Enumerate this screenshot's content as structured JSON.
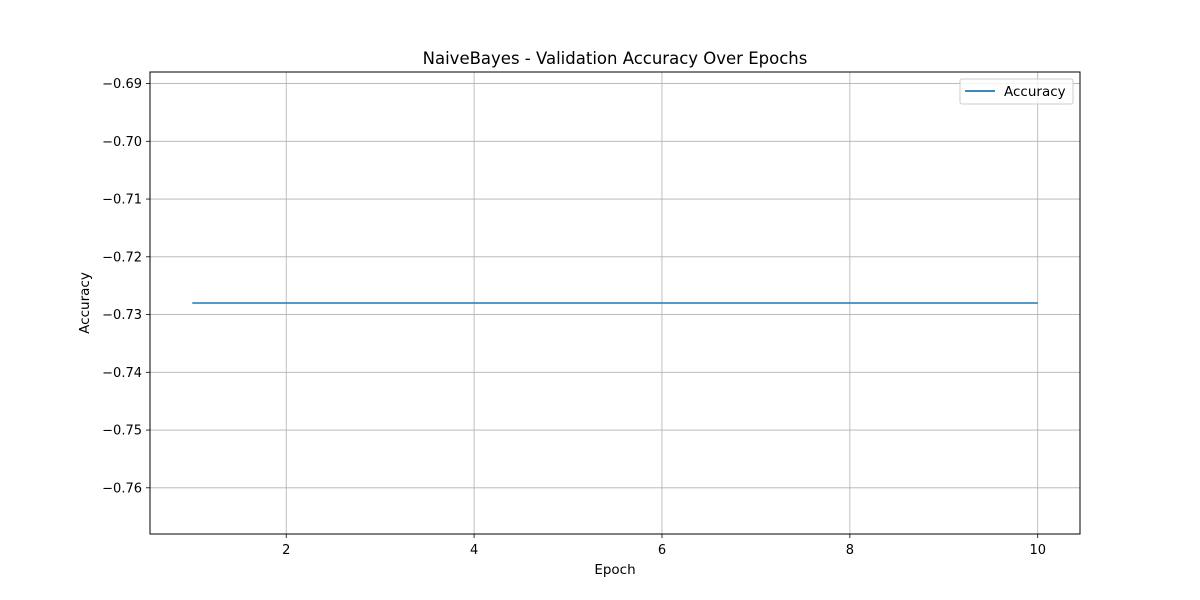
{
  "chart_data": {
    "type": "line",
    "title": "NaiveBayes - Validation Accuracy Over Epochs",
    "xlabel": "Epoch",
    "ylabel": "Accuracy",
    "x": [
      1,
      2,
      3,
      4,
      5,
      6,
      7,
      8,
      9,
      10
    ],
    "series": [
      {
        "name": "Accuracy",
        "values": [
          -0.728,
          -0.728,
          -0.728,
          -0.728,
          -0.728,
          -0.728,
          -0.728,
          -0.728,
          -0.728,
          -0.728
        ],
        "color": "#1f77b4"
      }
    ],
    "xlim": [
      0.55,
      10.45
    ],
    "ylim": [
      -0.768,
      -0.688
    ],
    "xticks": [
      2,
      4,
      6,
      8,
      10
    ],
    "xtick_labels": [
      "2",
      "4",
      "6",
      "8",
      "10"
    ],
    "yticks": [
      -0.69,
      -0.7,
      -0.71,
      -0.72,
      -0.73,
      -0.74,
      -0.75,
      -0.76
    ],
    "ytick_labels": [
      "−0.69",
      "−0.70",
      "−0.71",
      "−0.72",
      "−0.73",
      "−0.74",
      "−0.75",
      "−0.76"
    ],
    "grid": true,
    "legend_position": "top-right"
  }
}
